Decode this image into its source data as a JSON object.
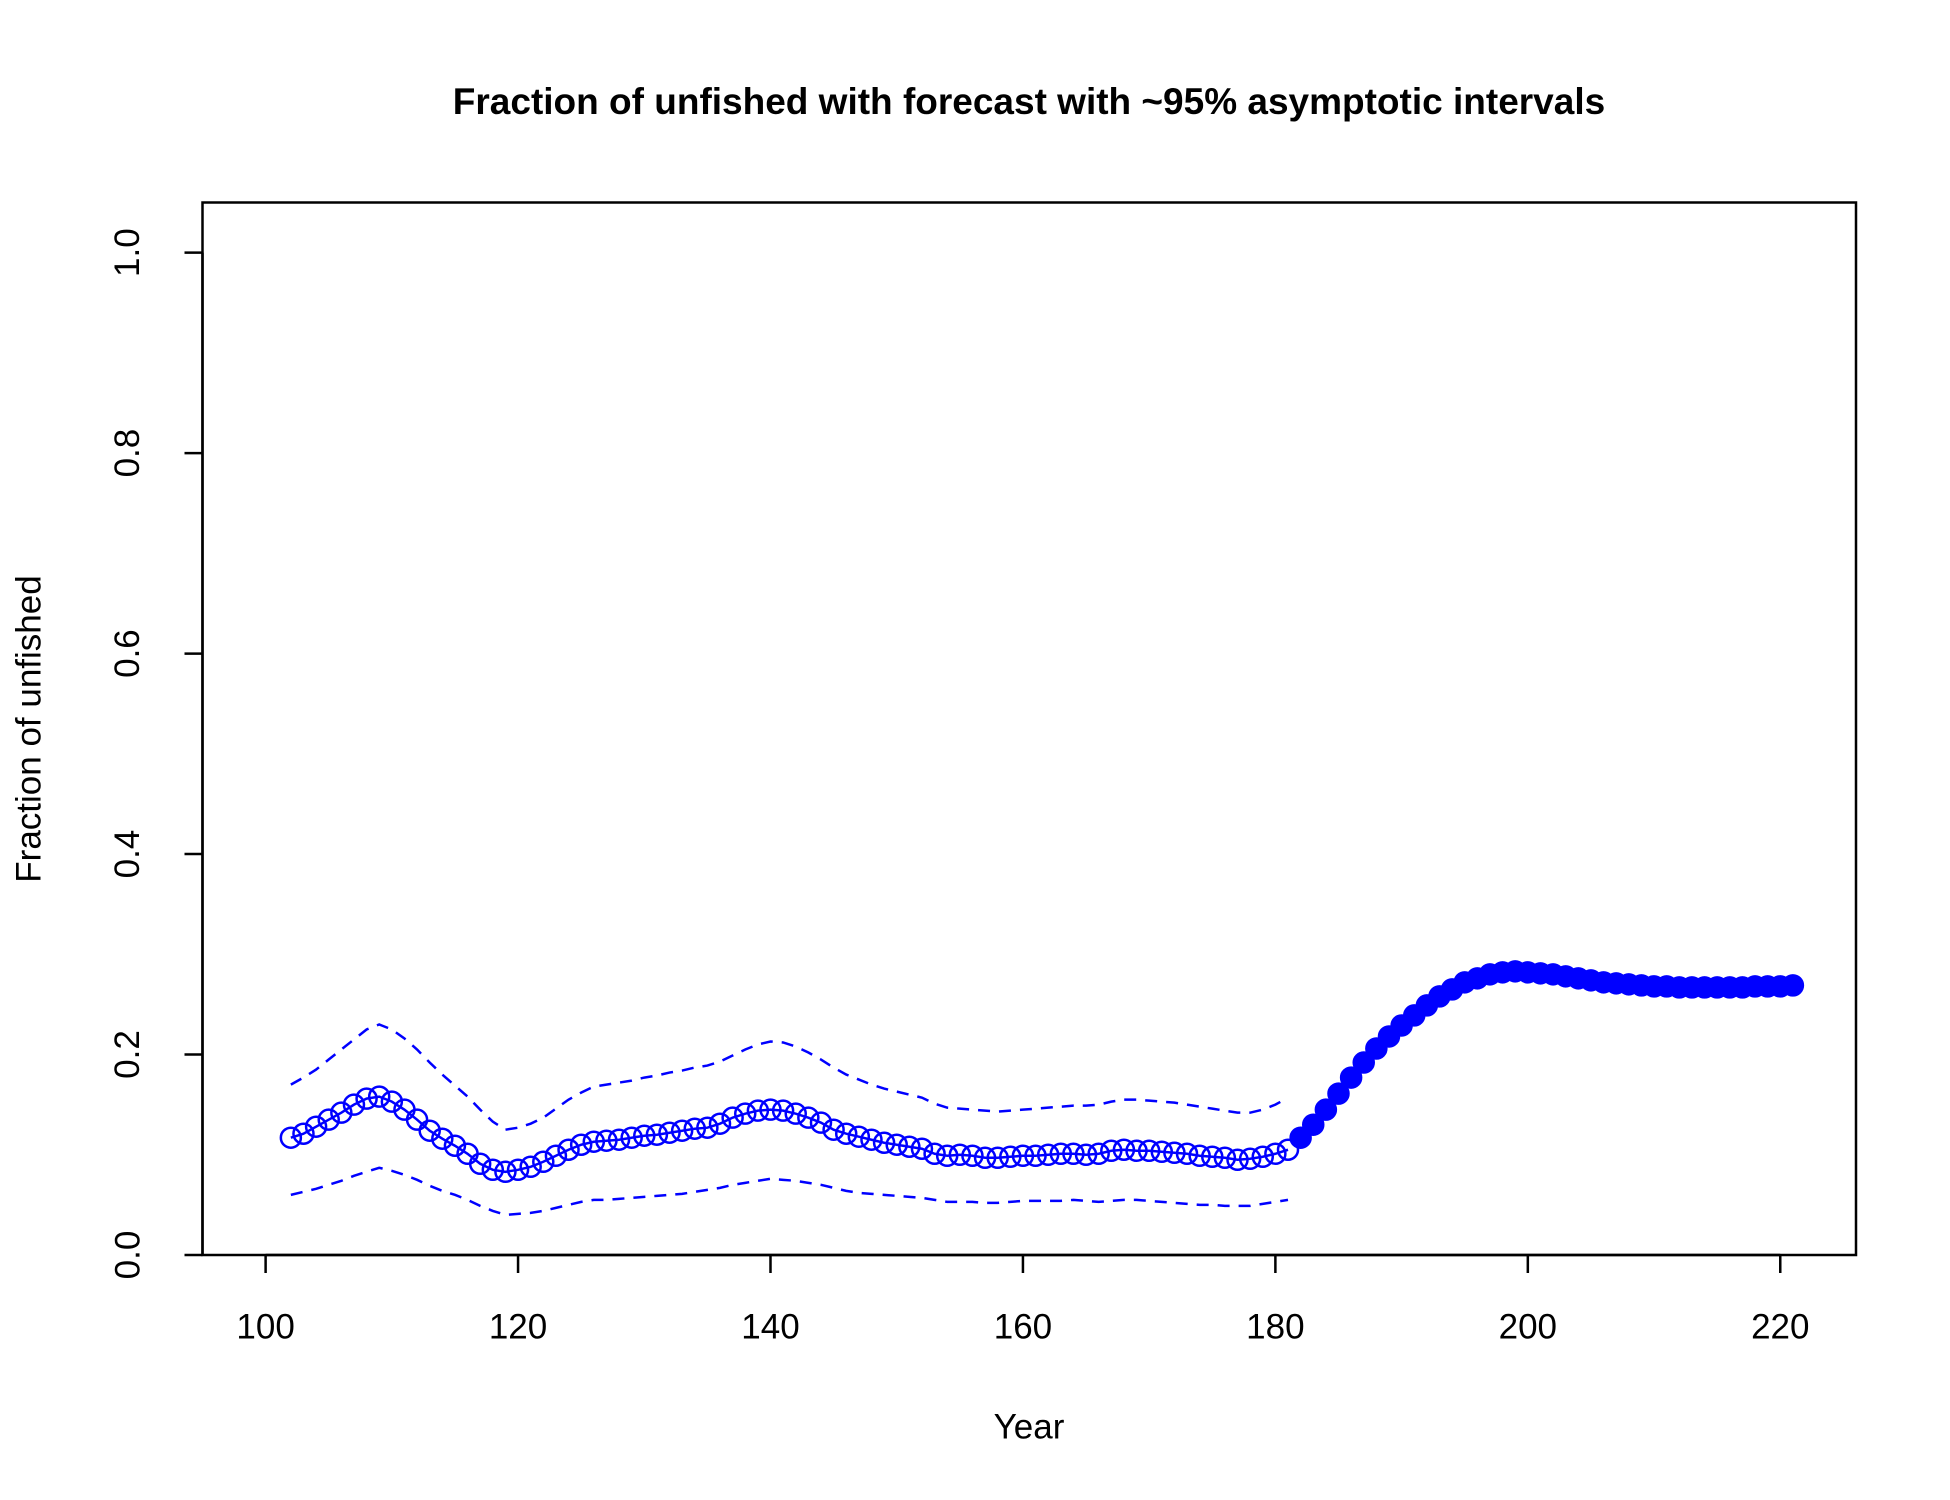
{
  "chart_data": {
    "type": "line",
    "title": "Fraction of unfished with forecast with ~95% asymptotic intervals",
    "xlabel": "Year",
    "ylabel": "Fraction of unfished",
    "x": [
      102,
      103,
      104,
      105,
      106,
      107,
      108,
      109,
      110,
      111,
      112,
      113,
      114,
      115,
      116,
      117,
      118,
      119,
      120,
      121,
      122,
      123,
      124,
      125,
      126,
      127,
      128,
      129,
      130,
      131,
      132,
      133,
      134,
      135,
      136,
      137,
      138,
      139,
      140,
      141,
      142,
      143,
      144,
      145,
      146,
      147,
      148,
      149,
      150,
      151,
      152,
      153,
      154,
      155,
      156,
      157,
      158,
      159,
      160,
      161,
      162,
      163,
      164,
      165,
      166,
      167,
      168,
      169,
      170,
      171,
      172,
      173,
      174,
      175,
      176,
      177,
      178,
      179,
      180,
      181,
      182,
      183,
      184,
      185,
      186,
      187,
      188,
      189,
      190,
      191,
      192,
      193,
      194,
      195,
      196,
      197,
      198,
      199,
      200,
      201,
      202,
      203,
      204,
      205,
      206,
      207,
      208,
      209,
      210,
      211,
      212,
      213,
      214,
      215,
      216,
      217,
      218,
      219,
      220,
      221
    ],
    "series": [
      {
        "color": "#0000ff",
        "marker": "open",
        "line": "solid",
        "values": [
          0.117,
          0.121,
          0.128,
          0.135,
          0.142,
          0.15,
          0.156,
          0.158,
          0.153,
          0.145,
          0.135,
          0.124,
          0.116,
          0.109,
          0.101,
          0.091,
          0.085,
          0.083,
          0.085,
          0.088,
          0.093,
          0.099,
          0.105,
          0.11,
          0.113,
          0.114,
          0.115,
          0.117,
          0.119,
          0.12,
          0.122,
          0.124,
          0.126,
          0.127,
          0.131,
          0.137,
          0.141,
          0.144,
          0.145,
          0.144,
          0.141,
          0.137,
          0.132,
          0.125,
          0.121,
          0.118,
          0.115,
          0.112,
          0.11,
          0.108,
          0.106,
          0.101,
          0.099,
          0.1,
          0.099,
          0.097,
          0.097,
          0.098,
          0.099,
          0.099,
          0.1,
          0.101,
          0.101,
          0.1,
          0.101,
          0.104,
          0.105,
          0.104,
          0.104,
          0.103,
          0.102,
          0.101,
          0.099,
          0.098,
          0.097,
          0.095,
          0.096,
          0.098,
          0.101,
          0.105,
          null,
          null,
          null,
          null,
          null,
          null,
          null,
          null,
          null,
          null,
          null,
          null,
          null,
          null,
          null,
          null,
          null,
          null,
          null,
          null,
          null,
          null,
          null,
          null,
          null,
          null,
          null,
          null,
          null,
          null,
          null,
          null,
          null,
          null,
          null,
          null,
          null,
          null,
          null,
          null
        ]
      },
      {
        "color": "#0000ff",
        "marker": "filled",
        "line": "none",
        "values": [
          null,
          null,
          null,
          null,
          null,
          null,
          null,
          null,
          null,
          null,
          null,
          null,
          null,
          null,
          null,
          null,
          null,
          null,
          null,
          null,
          null,
          null,
          null,
          null,
          null,
          null,
          null,
          null,
          null,
          null,
          null,
          null,
          null,
          null,
          null,
          null,
          null,
          null,
          null,
          null,
          null,
          null,
          null,
          null,
          null,
          null,
          null,
          null,
          null,
          null,
          null,
          null,
          null,
          null,
          null,
          null,
          null,
          null,
          null,
          null,
          null,
          null,
          null,
          null,
          null,
          null,
          null,
          null,
          null,
          null,
          null,
          null,
          null,
          null,
          null,
          null,
          null,
          null,
          null,
          null,
          0.117,
          0.13,
          0.145,
          0.161,
          0.177,
          0.192,
          0.206,
          0.218,
          0.229,
          0.239,
          0.249,
          0.258,
          0.265,
          0.272,
          0.276,
          0.28,
          0.282,
          0.283,
          0.282,
          0.281,
          0.28,
          0.278,
          0.276,
          0.274,
          0.272,
          0.271,
          0.27,
          0.269,
          0.268,
          0.268,
          0.267,
          0.267,
          0.267,
          0.267,
          0.267,
          0.267,
          0.268,
          0.268,
          0.268,
          0.269
        ]
      },
      {
        "color": "#0000ff",
        "marker": "none",
        "line": "dashed",
        "values": [
          0.17,
          0.177,
          0.185,
          0.195,
          0.205,
          0.215,
          0.225,
          0.23,
          0.225,
          0.216,
          0.205,
          0.192,
          0.18,
          0.169,
          0.158,
          0.145,
          0.133,
          0.125,
          0.127,
          0.131,
          0.137,
          0.146,
          0.155,
          0.162,
          0.168,
          0.17,
          0.172,
          0.174,
          0.177,
          0.179,
          0.182,
          0.184,
          0.187,
          0.189,
          0.193,
          0.199,
          0.205,
          0.21,
          0.213,
          0.212,
          0.208,
          0.202,
          0.195,
          0.187,
          0.18,
          0.175,
          0.17,
          0.166,
          0.163,
          0.16,
          0.157,
          0.151,
          0.147,
          0.146,
          0.145,
          0.144,
          0.143,
          0.144,
          0.145,
          0.146,
          0.147,
          0.148,
          0.149,
          0.149,
          0.15,
          0.153,
          0.155,
          0.155,
          0.154,
          0.153,
          0.152,
          0.15,
          0.148,
          0.146,
          0.144,
          0.142,
          0.142,
          0.145,
          0.15,
          0.157,
          null,
          null,
          null,
          null,
          null,
          null,
          null,
          null,
          null,
          null,
          null,
          null,
          null,
          null,
          null,
          null,
          null,
          null,
          null,
          null,
          null,
          null,
          null,
          null,
          null,
          null,
          null,
          null,
          null,
          null,
          null,
          null,
          null,
          null,
          null,
          null,
          null,
          null,
          null,
          null
        ]
      },
      {
        "color": "#0000ff",
        "marker": "none",
        "line": "dashed",
        "values": [
          0.06,
          0.063,
          0.066,
          0.07,
          0.074,
          0.079,
          0.083,
          0.087,
          0.084,
          0.08,
          0.075,
          0.069,
          0.064,
          0.06,
          0.055,
          0.049,
          0.044,
          0.04,
          0.041,
          0.042,
          0.044,
          0.047,
          0.05,
          0.053,
          0.055,
          0.055,
          0.056,
          0.057,
          0.058,
          0.059,
          0.06,
          0.061,
          0.063,
          0.065,
          0.067,
          0.07,
          0.072,
          0.074,
          0.076,
          0.075,
          0.074,
          0.072,
          0.07,
          0.067,
          0.064,
          0.062,
          0.061,
          0.06,
          0.059,
          0.058,
          0.057,
          0.055,
          0.053,
          0.053,
          0.053,
          0.052,
          0.052,
          0.053,
          0.054,
          0.054,
          0.054,
          0.054,
          0.055,
          0.054,
          0.053,
          0.054,
          0.055,
          0.055,
          0.054,
          0.053,
          0.052,
          0.051,
          0.05,
          0.05,
          0.049,
          0.049,
          0.049,
          0.051,
          0.053,
          0.055,
          null,
          null,
          null,
          null,
          null,
          null,
          null,
          null,
          null,
          null,
          null,
          null,
          null,
          null,
          null,
          null,
          null,
          null,
          null,
          null,
          null,
          null,
          null,
          null,
          null,
          null,
          null,
          null,
          null,
          null,
          null,
          null,
          null,
          null,
          null,
          null,
          null,
          null,
          null,
          null
        ]
      }
    ],
    "xlim": [
      95,
      226
    ],
    "xticks": [
      100,
      120,
      140,
      160,
      180,
      200,
      220
    ],
    "ylim": [
      0,
      1.05
    ],
    "yticks": [
      {
        "value": 0,
        "label": "0.0"
      },
      {
        "value": 0.2,
        "label": "0.2"
      },
      {
        "value": 0.4,
        "label": "0.4"
      },
      {
        "value": 0.6,
        "label": "0.6"
      },
      {
        "value": 0.8,
        "label": "0.8"
      },
      {
        "value": 1,
        "label": "1.0"
      }
    ],
    "grid": false
  }
}
